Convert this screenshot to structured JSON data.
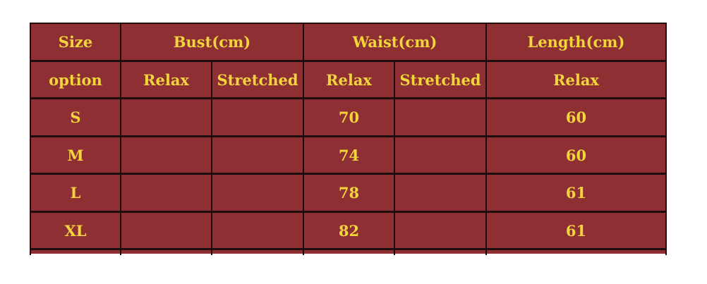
{
  "table": {
    "header1": [
      "Size",
      "Bust(cm)",
      "Waist(cm)",
      "Length(cm)"
    ],
    "header2": [
      "option",
      "Relax",
      "Stretched",
      "Relax",
      "Stretched",
      "Relax"
    ],
    "rows": [
      {
        "size": "S",
        "bust_relax": "",
        "bust_stretched": "",
        "waist_relax": "70",
        "waist_stretched": "",
        "length_relax": "60"
      },
      {
        "size": "M",
        "bust_relax": "",
        "bust_stretched": "",
        "waist_relax": "74",
        "waist_stretched": "",
        "length_relax": "60"
      },
      {
        "size": "L",
        "bust_relax": "",
        "bust_stretched": "",
        "waist_relax": "78",
        "waist_stretched": "",
        "length_relax": "61"
      },
      {
        "size": "XL",
        "bust_relax": "",
        "bust_stretched": "",
        "waist_relax": "82",
        "waist_stretched": "",
        "length_relax": "61"
      }
    ],
    "colors": {
      "background": "#8e2f33",
      "text": "#f2d43c",
      "border": "#1f0c0c"
    }
  }
}
